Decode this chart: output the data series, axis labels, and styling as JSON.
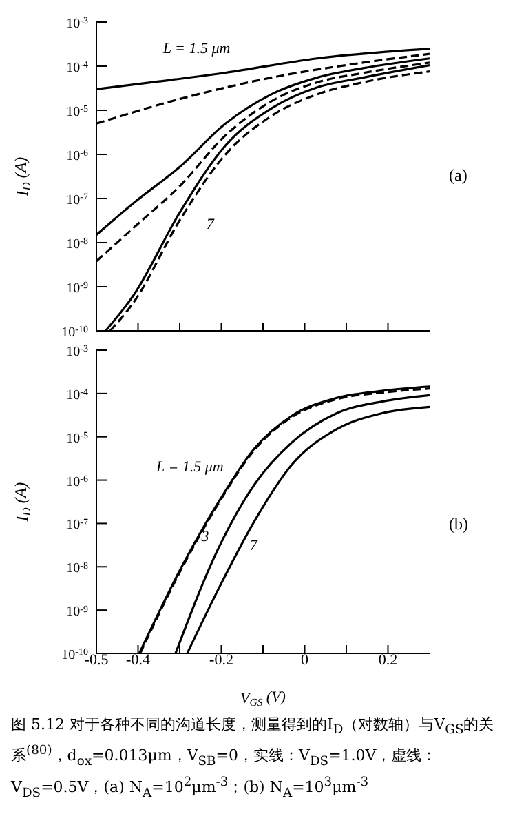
{
  "chart_data": [
    {
      "type": "line",
      "ylabel": "I$_{D}$ (A)",
      "log": "y",
      "grid": false,
      "marker": "none",
      "tick_labels": "y",
      "xlim": [
        -0.5,
        0.3
      ],
      "xticks": [
        -0.5,
        -0.4,
        {
          "value": -0.3,
          "label": null
        },
        -0.2,
        {
          "value": -0.1,
          "label": null
        },
        0,
        {
          "value": 0.1,
          "label": null
        },
        0.2
      ],
      "ylim": [
        1e-10,
        0.001
      ],
      "yticks": [
        {
          "value": 1e-10,
          "label": "10$^{-10}$"
        },
        {
          "value": 1e-09,
          "label": "10$^{-9}$"
        },
        {
          "value": 1e-08,
          "label": "10$^{-8}$"
        },
        {
          "value": 1e-07,
          "label": "10$^{-7}$"
        },
        {
          "value": 1e-06,
          "label": "10$^{-6}$"
        },
        {
          "value": 1e-05,
          "label": "10$^{-5}$"
        },
        {
          "value": 0.0001,
          "label": "10$^{-4}$"
        },
        {
          "value": 0.001,
          "label": "10$^{-3}$"
        }
      ],
      "series": [
        {
          "color": "#000000",
          "line_style": "solid",
          "x": [
            -0.5,
            -0.35,
            -0.19,
            0.03,
            0.3
          ],
          "values": [
            3e-05,
            4.5e-05,
            7.1e-05,
            0.00015,
            0.00025
          ]
        },
        {
          "color": "#000000",
          "line_style": "dashed",
          "x": [
            -0.5,
            -0.3,
            -0.08,
            0.14,
            0.3
          ],
          "values": [
            5e-06,
            1.8e-05,
            5.5e-05,
            0.00012,
            0.00019
          ]
        },
        {
          "color": "#000000",
          "line_style": "solid",
          "x": [
            -0.5,
            -0.41,
            -0.3,
            -0.19,
            -0.08,
            0.03,
            0.14,
            0.3
          ],
          "values": [
            1.5e-08,
            8e-08,
            5.2e-07,
            5e-06,
            2.3e-05,
            5.5e-05,
            9e-05,
            0.00015
          ]
        },
        {
          "color": "#000000",
          "line_style": "dashed",
          "x": [
            -0.5,
            -0.41,
            -0.3,
            -0.19,
            -0.08,
            0.03,
            0.14,
            0.3
          ],
          "values": [
            3.8e-09,
            2.2e-08,
            1.9e-07,
            2.7e-06,
            1.6e-05,
            4.3e-05,
            7e-05,
            0.00012
          ]
        },
        {
          "color": "#000000",
          "line_style": "solid",
          "x": [
            -0.478,
            -0.41,
            -0.3,
            -0.19,
            -0.08,
            0.03,
            0.14,
            0.3
          ],
          "values": [
            1e-10,
            6.6e-10,
            4.8e-08,
            1.6e-06,
            1.1e-05,
            3.3e-05,
            5.5e-05,
            0.000105
          ]
        },
        {
          "color": "#000000",
          "line_style": "dashed",
          "x": [
            -0.467,
            -0.41,
            -0.3,
            -0.19,
            -0.08,
            0.03,
            0.14,
            0.3
          ],
          "values": [
            1e-10,
            4.5e-10,
            3.2e-08,
            1e-06,
            7.4e-06,
            2.3e-05,
            4.3e-05,
            7.6e-05
          ]
        }
      ],
      "annotations": [
        "(a)",
        "L = 1.5 μm",
        "7"
      ]
    },
    {
      "type": "line",
      "xlabel": "V$_{GS}$ (V)",
      "ylabel": "I$_{D}$ (A)",
      "log": "y",
      "grid": false,
      "marker": "none",
      "xlim": [
        -0.5,
        0.3
      ],
      "xticks": [
        -0.5,
        -0.4,
        {
          "value": -0.3,
          "label": null
        },
        -0.2,
        {
          "value": -0.1,
          "label": null
        },
        0,
        {
          "value": 0.1,
          "label": null
        },
        0.2
      ],
      "ylim": [
        1e-10,
        0.001
      ],
      "yticks": [
        {
          "value": 1e-10,
          "label": "10$^{-10}$"
        },
        {
          "value": 1e-09,
          "label": "10$^{-9}$"
        },
        {
          "value": 1e-08,
          "label": "10$^{-8}$"
        },
        {
          "value": 1e-07,
          "label": "10$^{-7}$"
        },
        {
          "value": 1e-06,
          "label": "10$^{-6}$"
        },
        {
          "value": 1e-05,
          "label": "10$^{-5}$"
        },
        {
          "value": 0.0001,
          "label": "10$^{-4}$"
        },
        {
          "value": 0.001,
          "label": "10$^{-3}$"
        }
      ],
      "series": [
        {
          "color": "#000000",
          "line_style": "solid",
          "x": [
            -0.397,
            -0.293,
            -0.206,
            -0.119,
            -0.032,
            0.077,
            0.186,
            0.3
          ],
          "values": [
            1e-10,
            1.1e-08,
            3.2e-07,
            5.6e-06,
            3e-05,
            7.9e-05,
            0.000115,
            0.000145
          ]
        },
        {
          "color": "#000000",
          "line_style": "dashed",
          "x": [
            -0.395,
            -0.293,
            -0.206,
            -0.119,
            -0.032,
            0.077,
            0.186,
            0.3
          ],
          "values": [
            1e-10,
            1e-08,
            3e-07,
            5.2e-06,
            2.8e-05,
            7.4e-05,
            0.000105,
            0.00013
          ]
        },
        {
          "color": "#000000",
          "line_style": "solid",
          "x": [
            -0.31,
            -0.206,
            -0.119,
            -0.032,
            0.077,
            0.186,
            0.3
          ],
          "values": [
            1e-10,
            2.8e-08,
            8.3e-07,
            7.2e-06,
            3.5e-05,
            6.5e-05,
            9.1e-05
          ]
        },
        {
          "color": "#000000",
          "line_style": "solid",
          "x": [
            -0.282,
            -0.206,
            -0.119,
            -0.032,
            0.077,
            0.186,
            0.3
          ],
          "values": [
            1e-10,
            3.2e-09,
            1.2e-07,
            2.2e-06,
            1.5e-05,
            3.5e-05,
            4.9e-05
          ]
        }
      ],
      "annotations": [
        "(b)",
        "图 5.12 对于各种不同的沟道长度，测量得到的I$_{D}$（对数轴）与V$_{GS}$的关系$^{(80)}$，d$_{ox}$=0.013μm，V$_{SB}$=0，实线：V$_{DS}$=1.0V，虚线：V$_{DS}$=0.5V，(a) N$_{A}$=10$^{2}$μm$^{-3}$；(b) N$_{A}$=10$^{3}$μm$^{-3}$",
        "L = 1.5 μm",
        "3",
        "7"
      ]
    }
  ]
}
